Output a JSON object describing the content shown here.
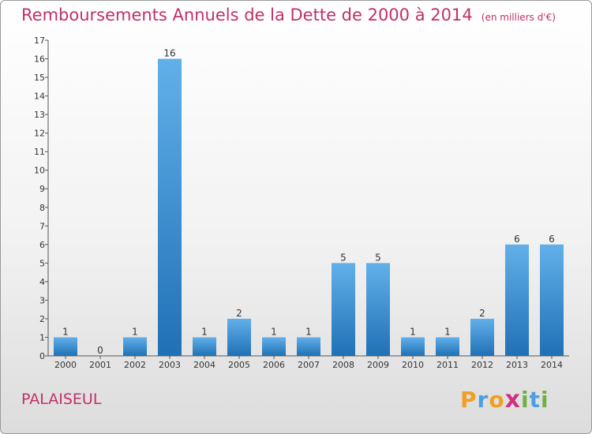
{
  "header": {
    "title": "Remboursements Annuels de la Dette de 2000 à 2014",
    "unit": "(en milliers d'€)"
  },
  "footer": {
    "city": "PALAISEUL",
    "logo_letters": [
      "P",
      "r",
      "o",
      "x",
      "i",
      "t",
      "i"
    ]
  },
  "colors": {
    "title": "#c0306a",
    "bar_top": "#62b0ea",
    "bar_bottom": "#1f70b6",
    "logo": [
      "#f0a020",
      "#4aa0e0",
      "#f0a020",
      "#d03080",
      "#70b040",
      "#4aa0e0",
      "#70b040"
    ]
  },
  "chart_data": {
    "type": "bar",
    "categories": [
      "2000",
      "2001",
      "2002",
      "2003",
      "2004",
      "2005",
      "2006",
      "2007",
      "2008",
      "2009",
      "2010",
      "2011",
      "2012",
      "2013",
      "2014"
    ],
    "values": [
      1,
      0,
      1,
      16,
      1,
      2,
      1,
      1,
      5,
      5,
      1,
      1,
      2,
      6,
      6
    ],
    "y_ticks": [
      "0",
      "1",
      "2",
      "3",
      "4",
      "5",
      "6",
      "7",
      "8",
      "9",
      "10",
      "11",
      "12",
      "13",
      "14",
      "15",
      "16",
      "17"
    ],
    "ylim": [
      0,
      17
    ],
    "grid": false
  }
}
